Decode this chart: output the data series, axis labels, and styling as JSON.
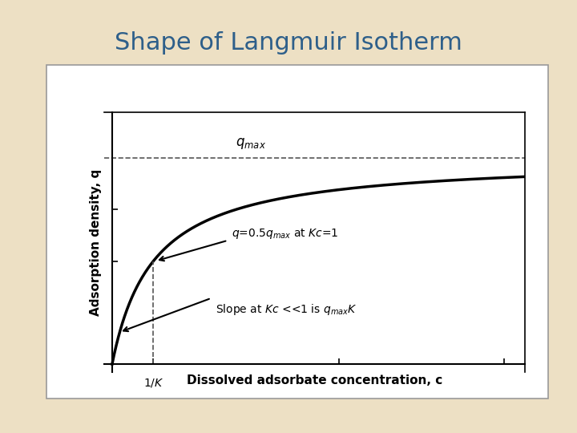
{
  "title": "Shape of Langmuir Isotherm",
  "title_color": "#2E5F8A",
  "title_fontsize": 22,
  "background_color": "#EDE0C4",
  "plot_background": "#FFFFFF",
  "xlabel": "Dissolved adsorbate concentration, c",
  "ylabel": "Adsorption density, q",
  "K": 1.0,
  "qmax": 1.0,
  "dashed_line_color": "#555555",
  "curve_color": "#000000",
  "arrow_color": "#000000",
  "border_color": "#AAAAAA"
}
